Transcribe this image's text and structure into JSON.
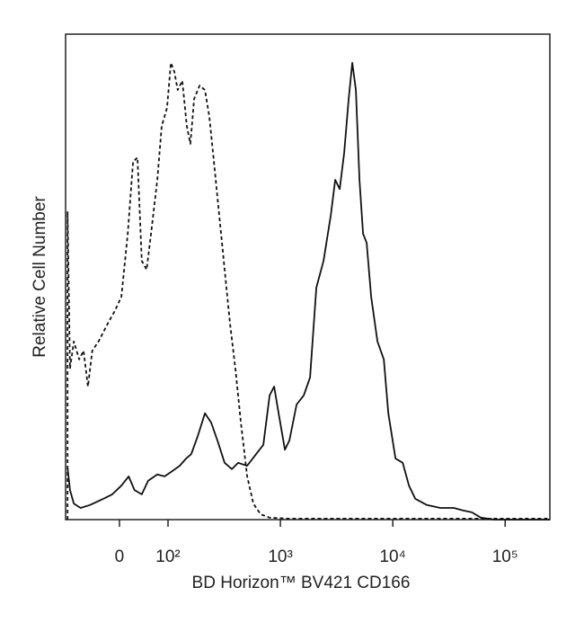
{
  "chart_data": {
    "type": "line",
    "x_label": "BD Horizon™ BV421 CD166",
    "y_label": "Relative Cell Number",
    "xscale": "biexponential",
    "xlim": [
      -111,
      250000
    ],
    "xticks": [
      0,
      {
        "value": 100,
        "label": "10²"
      },
      {
        "value": 1000,
        "label": "10³"
      },
      {
        "value": 10000,
        "label": "10⁴"
      },
      {
        "value": 100000,
        "label": "10⁵"
      }
    ],
    "ylim": [
      0,
      100
    ],
    "series": [
      {
        "color": "#111111",
        "style": "solid",
        "x": [
          -107,
          -102,
          -94,
          -80,
          -61,
          -33,
          -15,
          4,
          19,
          31,
          46,
          59,
          78,
          93,
          106,
          127,
          145,
          161,
          184,
          213,
          242,
          275,
          319,
          370,
          421,
          506,
          608,
          705,
          802,
          879,
          964,
          1096,
          1202,
          1393,
          1614,
          1837,
          2089,
          2421,
          2805,
          3076,
          3373,
          3698,
          4055,
          4365,
          4699,
          5058,
          5445,
          5861,
          6427,
          7311,
          8318,
          9120,
          10568,
          12246,
          13932,
          15849,
          20137,
          26546,
          34995,
          42073,
          50582,
          60814,
          80168,
          250000
        ],
        "values": [
          10.7,
          6.1,
          3.3,
          2.4,
          3.0,
          4.3,
          5.2,
          7.0,
          8.9,
          6.1,
          5.2,
          8.0,
          9.3,
          8.9,
          9.8,
          11.1,
          12.6,
          13.5,
          17.2,
          21.9,
          20.0,
          16.3,
          11.7,
          10.4,
          11.7,
          11.1,
          13.5,
          15.4,
          25.6,
          27.4,
          21.9,
          14.4,
          16.3,
          23.7,
          25.6,
          29.3,
          47.8,
          53.3,
          62.6,
          70.0,
          68.1,
          75.6,
          86.7,
          94.1,
          88.5,
          70.0,
          58.9,
          57.0,
          45.9,
          36.7,
          33.0,
          21.9,
          12.6,
          11.7,
          7.0,
          4.3,
          3.0,
          2.4,
          2.4,
          1.9,
          1.5,
          0.4,
          0,
          0
        ]
      },
      {
        "color": "#111111",
        "style": "dashed",
        "x": [
          -107,
          -107,
          -102,
          -94,
          -83,
          -74,
          -65,
          -56,
          -43,
          -24,
          -9,
          4,
          17,
          28,
          37,
          46,
          56,
          65,
          78,
          87,
          98,
          106,
          114,
          122,
          134,
          147,
          158,
          171,
          191,
          213,
          233,
          256,
          281,
          319,
          356,
          398,
          445,
          506,
          575,
          667,
          802,
          1159,
          250000
        ],
        "values": [
          0,
          63.5,
          31.1,
          36.7,
          33.0,
          34.8,
          27.4,
          34.8,
          36.7,
          40.4,
          43.1,
          45.9,
          58.9,
          73.7,
          74.6,
          53.3,
          51.5,
          58.9,
          70.0,
          81.1,
          84.8,
          94.1,
          92.2,
          88.5,
          90.4,
          81.1,
          77.4,
          86.7,
          89.4,
          88.5,
          83.0,
          73.7,
          64.4,
          51.5,
          40.4,
          31.1,
          20.0,
          8.9,
          3.3,
          1.1,
          0.4,
          0.2,
          0.2
        ]
      }
    ]
  }
}
